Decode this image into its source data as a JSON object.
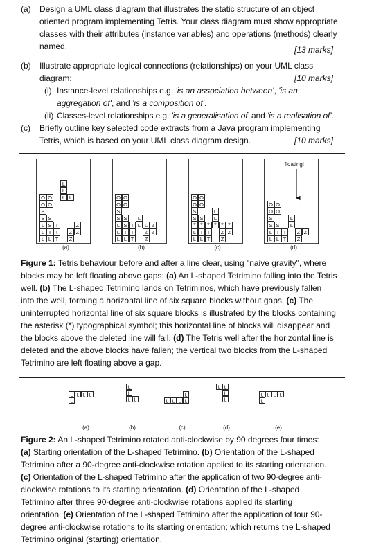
{
  "questions": {
    "a": {
      "label": "(a)",
      "lines": [
        "Design a UML class diagram that illustrates the static structure of an object",
        "oriented program implementing Tetris. Your class diagram must show appropriate",
        "classes with their attributes (instance variables) and operations (methods) clearly",
        "named."
      ],
      "marks": "[13 marks]"
    },
    "b": {
      "label": "(b)",
      "lines": [
        "Illustrate appropriate logical connections (relationships) on your UML class",
        "diagram:"
      ],
      "marks": "[10 marks]",
      "sub_i": {
        "label": "(i)",
        "line1_a": "Instance-level relationships e.g. ",
        "line1_b": "'is an association between'",
        "line1_c": ", ",
        "line1_d": "'is an",
        "line2_a": "aggregation of'",
        "line2_b": ", and ",
        "line2_c": "'is a composition of'",
        "line2_d": "."
      },
      "sub_ii": {
        "label": "(ii)",
        "a": "Classes-level relationships e.g. ",
        "b": "'is a generalisation of'",
        "c": " and ",
        "d": "'is a realisation of'",
        "e": "."
      }
    },
    "c": {
      "label": "(c)",
      "lines": [
        "Briefly outline key selected code extracts from a Java program implementing",
        "Tetris, which is based on your UML class diagram design."
      ],
      "marks": "[10 marks]"
    }
  },
  "figure1": {
    "panel_labels": [
      "(a)",
      "(b)",
      "(c)",
      "(d)"
    ],
    "floating_label": "floating!",
    "cell_letters": [
      "O",
      "S",
      "L",
      "T",
      "Z",
      "*"
    ],
    "caption": {
      "title": "Figure 1:",
      "lines": [
        " Tetris behaviour before and after a line clear, using \"naive gravity\", where",
        "blocks may be left floating above gaps: ",
        "An L-shaped Tetrimino falling into the Tetris",
        "well. ",
        " The L-shaped Tetrimino lands on Tetriminos, which have previously fallen",
        "into the well, forming a horizontal line of six square blocks without gaps. ",
        " The",
        "uninterrupted horizontal line of six square blocks is illustrated by the blocks containing",
        "the asterisk (*) typographical symbol; this horizontal line of blocks will disappear and",
        "the blocks above the deleted line will fall. ",
        " The Tetris well after the horizontal line is",
        "deleted and the above blocks have fallen; the vertical two blocks from the L-shaped",
        "Tetrimino are left floating above a gap."
      ],
      "bold_refs": [
        "(a)",
        "(b)",
        "(c)",
        "(d)"
      ]
    }
  },
  "figure2": {
    "panel_labels": [
      "(a)",
      "(b)",
      "(c)",
      "(d)",
      "(e)"
    ],
    "cell_letter": "L",
    "caption": {
      "title": "Figure 2:",
      "l1": " An L-shaped Tetrimino rotated anti-clockwise by 90 degrees four times:",
      "l2a": "(a)",
      "l2b": " Starting orientation of the L-shaped Tetrimino. ",
      "l2c": "(b)",
      "l2d": " Orientation of the L-shaped",
      "l3": "Tetrimino after a 90-degree anti-clockwise rotation applied to its starting orientation.",
      "l4a": "(c)",
      "l4b": " Orientation of the L-shaped Tetrimino after the application of two 90-degree anti-",
      "l5a": "clockwise rotations to its starting orientation. ",
      "l5b": "(d)",
      "l5c": " Orientation of the L-shaped",
      "l6": "Tetrimino after three 90-degree anti-clockwise rotations applied its starting",
      "l7a": "orientation. ",
      "l7b": "(e)",
      "l7c": " Orientation of the L-shaped Tetrimino after the application of four 90-",
      "l8": "degree anti-clockwise rotations to its starting orientation; which returns the L-shaped",
      "l9": "Tetrimino original (starting) orientation."
    }
  }
}
